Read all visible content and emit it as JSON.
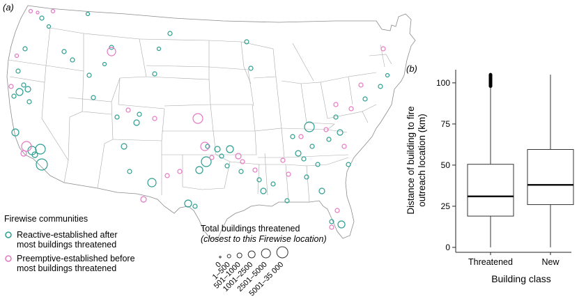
{
  "panel_a": {
    "label": "(a)",
    "legend_title": "Firewise communities",
    "legend_items": [
      {
        "line1": "Reactive-established after",
        "line2": "most buildings threatened",
        "color": "#2a9d8f"
      },
      {
        "line1": "Preemptive-established before",
        "line2": "most buildings threatened",
        "color": "#e377c2"
      }
    ],
    "size_legend_title": "Total buildings threatened",
    "size_legend_subtitle": "(closest to this Firewise location)",
    "size_classes": [
      "0",
      "1–500",
      "501–1000",
      "1001–2500",
      "2501–5000",
      "5001–35 000"
    ],
    "size_class_order": [
      1,
      2,
      3,
      4,
      5,
      6
    ]
  },
  "chart_data": {
    "type": "boxplot",
    "panel_label": "(b)",
    "xlabel": "Building class",
    "ylabel_line1": "Distance of building to fire",
    "ylabel_line2": "outreach location (km)",
    "ylim": [
      -3,
      108
    ],
    "yticks": [
      0,
      25,
      50,
      75,
      100
    ],
    "categories": [
      "Threatened",
      "New"
    ],
    "boxes": [
      {
        "category": "Threatened",
        "min": 0,
        "q1": 19,
        "median": 31,
        "q3": 50.5,
        "max": 98,
        "outliers_from": 98,
        "outliers_to": 105
      },
      {
        "category": "New",
        "min": 0,
        "q1": 26,
        "median": 38,
        "q3": 59.5,
        "max": 105
      }
    ]
  },
  "colors": {
    "reactive": "#2a9d8f",
    "preemptive": "#e377c2",
    "outline": "#555555",
    "axis": "#222222"
  }
}
